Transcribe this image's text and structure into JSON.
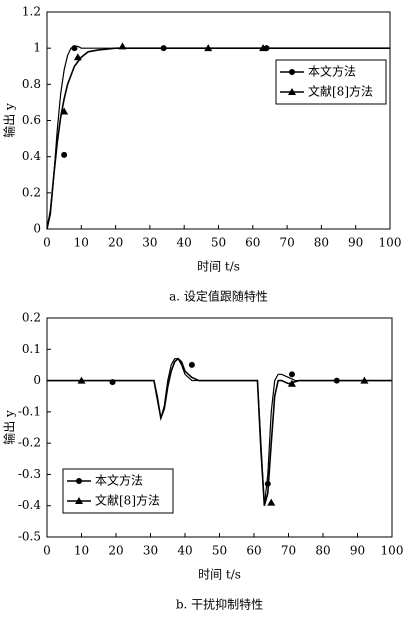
{
  "chart_data": [
    {
      "type": "line",
      "caption": "a. 设定值跟随特性",
      "x_label": "时间 t/s",
      "y_label": "输出 y",
      "xlim": [
        0,
        100
      ],
      "xticks": [
        0,
        10,
        20,
        30,
        40,
        50,
        60,
        70,
        80,
        90,
        100
      ],
      "ylim": [
        0,
        1.2
      ],
      "yticks": [
        0,
        0.2,
        0.4,
        0.6,
        0.8,
        1.0,
        1.2
      ],
      "legend": "upper right",
      "series": [
        {
          "name": "本文方法",
          "color": "#000000",
          "marker": "circle",
          "x": [
            0,
            1,
            2,
            3,
            4,
            5,
            6,
            7,
            8,
            9,
            10,
            12,
            15,
            100
          ],
          "values": [
            0,
            0.08,
            0.3,
            0.55,
            0.75,
            0.88,
            0.96,
            1.0,
            1.01,
            1.01,
            1.0,
            1.0,
            1.0,
            1.0
          ],
          "marker_x": [
            5,
            8,
            34,
            64
          ],
          "marker_values": [
            0.41,
            1.0,
            1.0,
            1.0
          ]
        },
        {
          "name": "文献[8]方法",
          "color": "#000000",
          "marker": "triangle",
          "x": [
            0,
            1,
            2,
            3,
            4,
            5,
            6,
            8,
            10,
            12,
            15,
            20,
            25,
            100
          ],
          "values": [
            0,
            0.1,
            0.3,
            0.48,
            0.62,
            0.72,
            0.8,
            0.9,
            0.95,
            0.98,
            0.99,
            1.0,
            1.0,
            1.0
          ],
          "marker_x": [
            5,
            9,
            22,
            47,
            63
          ],
          "marker_values": [
            0.65,
            0.95,
            1.01,
            1.0,
            1.0
          ]
        }
      ]
    },
    {
      "type": "line",
      "caption": "b. 干扰抑制特性",
      "x_label": "时间 t/s",
      "y_label": "输出 y",
      "xlim": [
        0,
        100
      ],
      "xticks": [
        0,
        10,
        20,
        30,
        40,
        50,
        60,
        70,
        80,
        90,
        100
      ],
      "ylim": [
        -0.5,
        0.2
      ],
      "yticks": [
        -0.5,
        -0.4,
        -0.3,
        -0.2,
        -0.1,
        0,
        0.1,
        0.2
      ],
      "legend": "lower left",
      "series": [
        {
          "name": "本文方法",
          "color": "#000000",
          "marker": "circle",
          "x": [
            0,
            31,
            32,
            33,
            34,
            35,
            36,
            37,
            38,
            39,
            40,
            42,
            45,
            61,
            62,
            63,
            64,
            65,
            66,
            67,
            68,
            70,
            72,
            75,
            100
          ],
          "values": [
            0,
            0,
            -0.05,
            -0.12,
            -0.08,
            0.0,
            0.05,
            0.07,
            0.07,
            0.05,
            0.02,
            0.0,
            0,
            0,
            -0.2,
            -0.4,
            -0.3,
            -0.1,
            0.0,
            0.02,
            0.02,
            0.01,
            0.0,
            0,
            0
          ],
          "marker_x": [
            19,
            42,
            64,
            71,
            84
          ],
          "marker_values": [
            -0.005,
            0.05,
            -0.33,
            0.02,
            0
          ]
        },
        {
          "name": "文献[8]方法",
          "color": "#000000",
          "marker": "triangle",
          "x": [
            0,
            31,
            32,
            33,
            34,
            35,
            36,
            37,
            38,
            39,
            40,
            42,
            44,
            61,
            62,
            63,
            64,
            65,
            66,
            67,
            68,
            70,
            73,
            76,
            100
          ],
          "values": [
            0,
            0,
            -0.06,
            -0.12,
            -0.09,
            -0.02,
            0.03,
            0.06,
            0.07,
            0.06,
            0.03,
            0.01,
            0,
            0,
            -0.22,
            -0.4,
            -0.36,
            -0.2,
            -0.05,
            0.0,
            0.0,
            -0.01,
            0.0,
            0,
            0
          ],
          "marker_x": [
            10,
            65,
            71,
            92
          ],
          "marker_values": [
            0,
            -0.39,
            -0.01,
            0
          ]
        }
      ]
    }
  ]
}
